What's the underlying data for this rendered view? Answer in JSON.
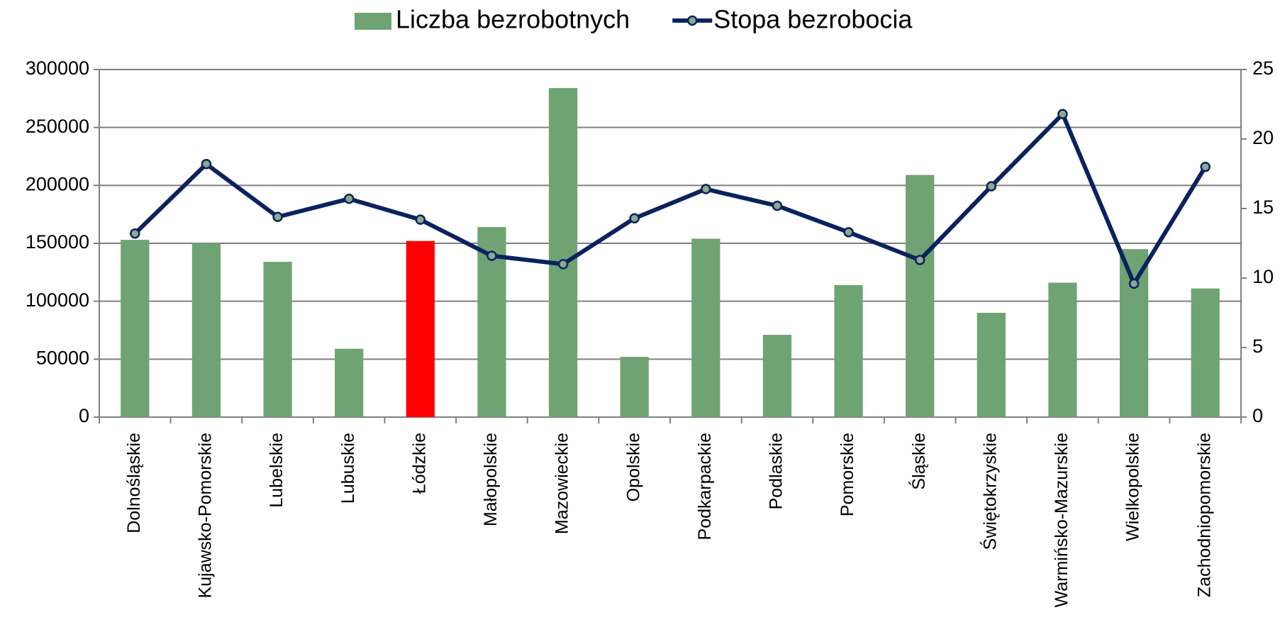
{
  "chart_data": {
    "type": "bar_line",
    "categories": [
      "Dolnośląskie",
      "Kujawsko-Pomorskie",
      "Lubelskie",
      "Lubuskie",
      "Łódzkie",
      "Małopolskie",
      "Mazowieckie",
      "Opolskie",
      "Podkarpackie",
      "Podlaskie",
      "Pomorskie",
      "Śląskie",
      "Świętokrzyskie",
      "Warmińsko-Mazurskie",
      "Wielkopolskie",
      "Zachodniopomorskie"
    ],
    "series": [
      {
        "name": "Liczba bezrobotnych",
        "type": "bar",
        "color": "#70a373",
        "colors": [
          "#70a373",
          "#70a373",
          "#70a373",
          "#70a373",
          "#ff0000",
          "#70a373",
          "#70a373",
          "#70a373",
          "#70a373",
          "#70a373",
          "#70a373",
          "#70a373",
          "#70a373",
          "#70a373",
          "#70a373",
          "#70a373"
        ],
        "values": [
          153000,
          150000,
          134000,
          59000,
          152000,
          164000,
          284000,
          52000,
          154000,
          71000,
          114000,
          209000,
          90000,
          116000,
          145000,
          111000
        ]
      },
      {
        "name": "Stopa bezrobocia",
        "type": "line",
        "axis": "y2",
        "color": "#0b2260",
        "values": [
          13.2,
          18.2,
          14.4,
          15.7,
          14.2,
          11.6,
          11.0,
          14.3,
          16.4,
          15.2,
          13.3,
          11.3,
          16.6,
          21.8,
          9.6,
          18.0
        ]
      }
    ],
    "ylim": [
      0,
      300000
    ],
    "yticks": [
      0,
      50000,
      100000,
      150000,
      200000,
      250000,
      300000
    ],
    "y2lim": [
      0,
      25
    ],
    "y2ticks": [
      0,
      5,
      10,
      15,
      20,
      25
    ],
    "grid": true,
    "legend": "top"
  }
}
